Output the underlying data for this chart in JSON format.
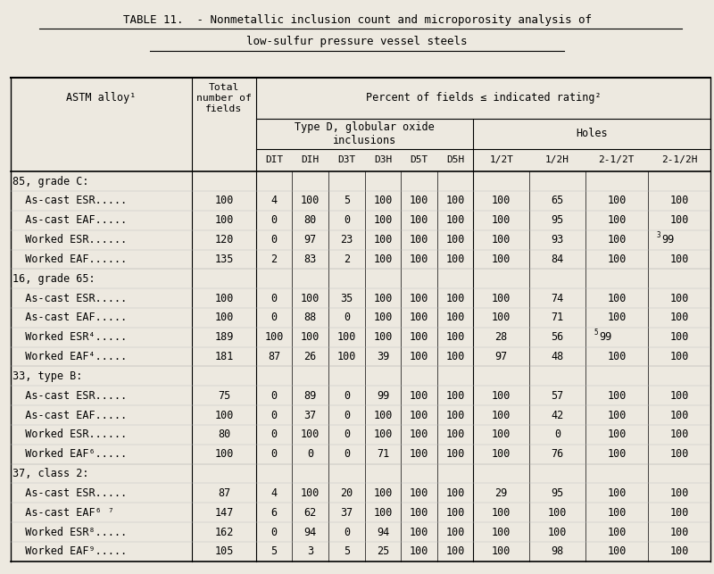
{
  "title_line1": "TABLE 11.  - Nonmetallic inclusion count and microporosity analysis of",
  "title_line2": "low-sulfur pressure vessel steels",
  "bg_color": "#ede9e0",
  "col_headers": [
    "DIT",
    "DIH",
    "D3T",
    "D3H",
    "D5T",
    "D5H",
    "1/2T",
    "1/2H",
    "2-1/2T",
    "2-1/2H"
  ],
  "groups": [
    {
      "group_label": "85, grade C:",
      "rows": [
        {
          "label": "  As-cast ESR.....",
          "fields": "100",
          "data": [
            "4",
            "100",
            "5",
            "100",
            "100",
            "100",
            "100",
            "65",
            "100",
            "100"
          ],
          "sup": {}
        },
        {
          "label": "  As-cast EAF.....",
          "fields": "100",
          "data": [
            "0",
            "80",
            "0",
            "100",
            "100",
            "100",
            "100",
            "95",
            "100",
            "100"
          ],
          "sup": {}
        },
        {
          "label": "  Worked ESR......",
          "fields": "120",
          "data": [
            "0",
            "97",
            "23",
            "100",
            "100",
            "100",
            "100",
            "93",
            "100",
            "99"
          ],
          "sup": {
            "9": "3"
          }
        },
        {
          "label": "  Worked EAF......",
          "fields": "135",
          "data": [
            "2",
            "83",
            "2",
            "100",
            "100",
            "100",
            "100",
            "84",
            "100",
            "100"
          ],
          "sup": {}
        }
      ]
    },
    {
      "group_label": "16, grade 65:",
      "rows": [
        {
          "label": "  As-cast ESR.....",
          "fields": "100",
          "data": [
            "0",
            "100",
            "35",
            "100",
            "100",
            "100",
            "100",
            "74",
            "100",
            "100"
          ],
          "sup": {}
        },
        {
          "label": "  As-cast EAF.....",
          "fields": "100",
          "data": [
            "0",
            "88",
            "0",
            "100",
            "100",
            "100",
            "100",
            "71",
            "100",
            "100"
          ],
          "sup": {}
        },
        {
          "label": "  Worked ESR⁴.....",
          "fields": "189",
          "data": [
            "100",
            "100",
            "100",
            "100",
            "100",
            "100",
            "28",
            "56",
            "99",
            "100"
          ],
          "sup": {
            "8": "5"
          }
        },
        {
          "label": "  Worked EAF⁴.....",
          "fields": "181",
          "data": [
            "87",
            "26",
            "100",
            "39",
            "100",
            "100",
            "97",
            "48",
            "100",
            "100"
          ],
          "sup": {}
        }
      ]
    },
    {
      "group_label": "33, type B:",
      "rows": [
        {
          "label": "  As-cast ESR.....",
          "fields": "75",
          "data": [
            "0",
            "89",
            "0",
            "99",
            "100",
            "100",
            "100",
            "57",
            "100",
            "100"
          ],
          "sup": {}
        },
        {
          "label": "  As-cast EAF.....",
          "fields": "100",
          "data": [
            "0",
            "37",
            "0",
            "100",
            "100",
            "100",
            "100",
            "42",
            "100",
            "100"
          ],
          "sup": {}
        },
        {
          "label": "  Worked ESR......",
          "fields": "80",
          "data": [
            "0",
            "100",
            "0",
            "100",
            "100",
            "100",
            "100",
            "0",
            "100",
            "100"
          ],
          "sup": {}
        },
        {
          "label": "  Worked EAF⁶.....",
          "fields": "100",
          "data": [
            "0",
            "0",
            "0",
            "71",
            "100",
            "100",
            "100",
            "76",
            "100",
            "100"
          ],
          "sup": {}
        }
      ]
    },
    {
      "group_label": "37, class 2:",
      "rows": [
        {
          "label": "  As-cast ESR.....",
          "fields": "87",
          "data": [
            "4",
            "100",
            "20",
            "100",
            "100",
            "100",
            "29",
            "95",
            "100",
            "100"
          ],
          "sup": {}
        },
        {
          "label": "  As-cast EAF⁶ ⁷",
          "fields": "147",
          "data": [
            "6",
            "62",
            "37",
            "100",
            "100",
            "100",
            "100",
            "100",
            "100",
            "100"
          ],
          "sup": {}
        },
        {
          "label": "  Worked ESR⁸.....",
          "fields": "162",
          "data": [
            "0",
            "94",
            "0",
            "94",
            "100",
            "100",
            "100",
            "100",
            "100",
            "100"
          ],
          "sup": {}
        },
        {
          "label": "  Worked EAF⁹.....",
          "fields": "105",
          "data": [
            "5",
            "3",
            "5",
            "25",
            "100",
            "100",
            "100",
            "98",
            "100",
            "100"
          ],
          "sup": {}
        }
      ]
    }
  ]
}
